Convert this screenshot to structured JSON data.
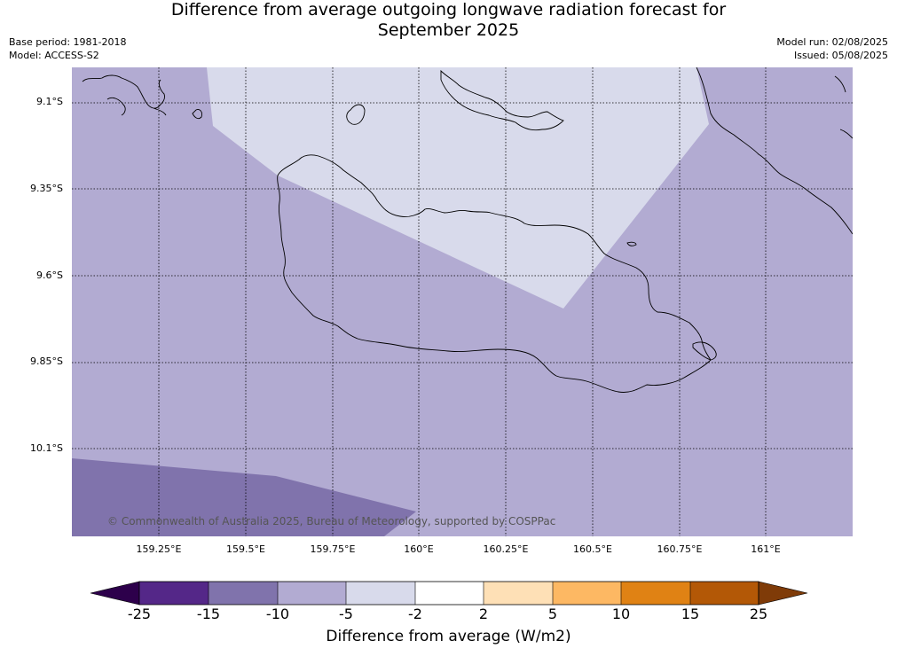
{
  "title": {
    "line1": "Difference from average outgoing longwave radiation forecast for",
    "line2": "September 2025"
  },
  "meta": {
    "base_period": "Base period: 1981-2018",
    "model": "Model: ACCESS-S2",
    "model_run": "Model run: 02/08/2025",
    "issued": "Issued: 05/08/2025"
  },
  "map": {
    "copyright": "© Commonwealth of Australia 2025, Bureau of Meteorology, supported by COSPPac",
    "lat_labels": [
      "9.1°S",
      "9.35°S",
      "9.6°S",
      "9.85°S",
      "10.1°S"
    ],
    "lon_labels": [
      "159.25°E",
      "159.5°E",
      "159.75°E",
      "160°E",
      "160.25°E",
      "160.5°E",
      "160.75°E",
      "161°E"
    ],
    "colors": {
      "band_-15_-10": "#8073ac",
      "band_-10_-5": "#b2abd2",
      "band_-5_-2": "#d8daeb",
      "coastline": "#000000",
      "gridline": "#000000"
    }
  },
  "colorbar": {
    "label": "Difference from average (W/m2)",
    "ticks": [
      "-25",
      "-15",
      "-10",
      "-5",
      "-2",
      "2",
      "5",
      "10",
      "15",
      "25"
    ],
    "colors": {
      "under": "#2d004b",
      "c1": "#542788",
      "c2": "#8073ac",
      "c3": "#b2abd2",
      "c4": "#d8daeb",
      "c5": "#ffffff",
      "c6": "#fee0b6",
      "c7": "#fdb863",
      "c8": "#e08214",
      "c9": "#b35806",
      "over": "#7f3b08"
    }
  }
}
